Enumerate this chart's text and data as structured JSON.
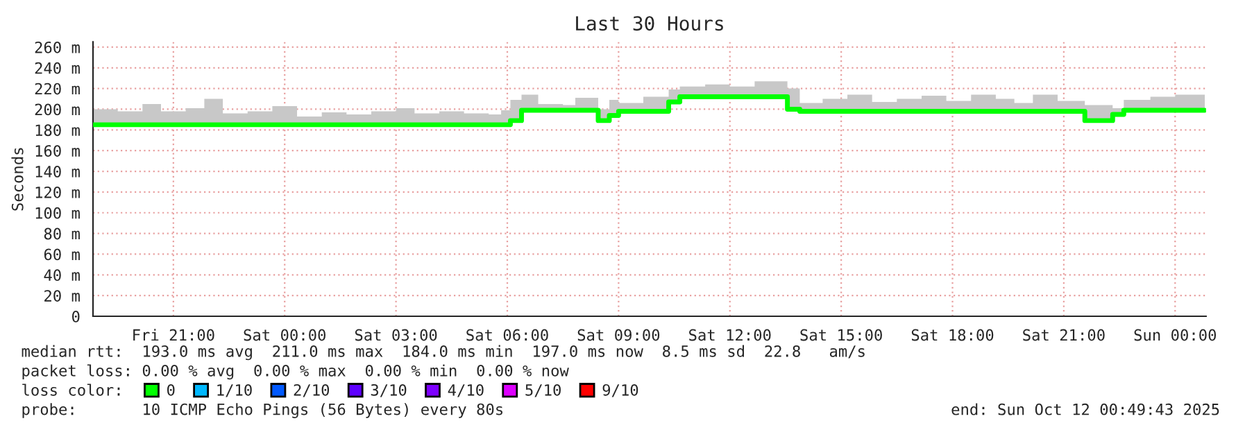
{
  "chart_data": {
    "type": "step",
    "title": "Last 30 Hours",
    "ylabel": "Seconds",
    "legend_title": "loss color:",
    "legend": "bottom left",
    "xlim": [
      "2025-10-10T18:50",
      "2025-10-12T00:50"
    ],
    "xticks": [
      {
        "value": "2025-10-10T21:00",
        "label": "Fri 21:00"
      },
      {
        "value": "2025-10-11T00:00",
        "label": "Sat 00:00"
      },
      {
        "value": "2025-10-11T03:00",
        "label": "Sat 03:00"
      },
      {
        "value": "2025-10-11T06:00",
        "label": "Sat 06:00"
      },
      {
        "value": "2025-10-11T09:00",
        "label": "Sat 09:00"
      },
      {
        "value": "2025-10-11T12:00",
        "label": "Sat 12:00"
      },
      {
        "value": "2025-10-11T15:00",
        "label": "Sat 15:00"
      },
      {
        "value": "2025-10-11T18:00",
        "label": "Sat 18:00"
      },
      {
        "value": "2025-10-11T21:00",
        "label": "Sat 21:00"
      },
      {
        "value": "2025-10-12T00:00",
        "label": "Sun 00:00"
      }
    ],
    "ylim": [
      0,
      265
    ],
    "yticks": [
      0,
      {
        "value": 20,
        "label": "20 m"
      },
      {
        "value": 40,
        "label": "40 m"
      },
      {
        "value": 60,
        "label": "60 m"
      },
      {
        "value": 80,
        "label": "80 m"
      },
      {
        "value": 100,
        "label": "100 m"
      },
      {
        "value": 120,
        "label": "120 m"
      },
      {
        "value": 140,
        "label": "140 m"
      },
      {
        "value": 160,
        "label": "160 m"
      },
      {
        "value": 180,
        "label": "180 m"
      },
      {
        "value": 200,
        "label": "200 m"
      },
      {
        "value": 220,
        "label": "220 m"
      },
      {
        "value": 240,
        "label": "240 m"
      },
      {
        "value": 260,
        "label": "260 m"
      }
    ],
    "grid": true,
    "series": [
      {
        "name": "0",
        "color": "#00ff00",
        "x": [
          "2025-10-10T18:50",
          "2025-10-10T19:30",
          "2025-10-10T20:10",
          "2025-10-10T20:40",
          "2025-10-10T21:20",
          "2025-10-10T21:50",
          "2025-10-10T22:20",
          "2025-10-10T23:00",
          "2025-10-10T23:40",
          "2025-10-11T00:20",
          "2025-10-11T01:00",
          "2025-10-11T01:40",
          "2025-10-11T02:20",
          "2025-10-11T03:00",
          "2025-10-11T03:30",
          "2025-10-11T04:10",
          "2025-10-11T04:50",
          "2025-10-11T05:30",
          "2025-10-11T05:50",
          "2025-10-11T06:05",
          "2025-10-11T06:23",
          "2025-10-11T06:50",
          "2025-10-11T07:30",
          "2025-10-11T07:50",
          "2025-10-11T08:27",
          "2025-10-11T08:45",
          "2025-10-11T09:00",
          "2025-10-11T09:40",
          "2025-10-11T10:21",
          "2025-10-11T10:39",
          "2025-10-11T11:20",
          "2025-10-11T12:00",
          "2025-10-11T12:40",
          "2025-10-11T13:33",
          "2025-10-11T13:53",
          "2025-10-11T14:30",
          "2025-10-11T15:10",
          "2025-10-11T15:50",
          "2025-10-11T16:30",
          "2025-10-11T17:10",
          "2025-10-11T17:50",
          "2025-10-11T18:30",
          "2025-10-11T19:10",
          "2025-10-11T19:40",
          "2025-10-11T20:10",
          "2025-10-11T20:50",
          "2025-10-11T21:34",
          "2025-10-11T22:19",
          "2025-10-11T22:37",
          "2025-10-11T23:20",
          "2025-10-12T00:00",
          "2025-10-12T00:48"
        ],
        "values": [
          185,
          185,
          185,
          185,
          185,
          185,
          185,
          185,
          185,
          185,
          185,
          185,
          185,
          185,
          185,
          185,
          185,
          185,
          185,
          189,
          199,
          199,
          199,
          199,
          189,
          194,
          198,
          198,
          207,
          212,
          212,
          212,
          212,
          200,
          198,
          198,
          198,
          198,
          198,
          198,
          198,
          198,
          198,
          198,
          198,
          198,
          189,
          195,
          199,
          199,
          199,
          199
        ],
        "lower": [
          183,
          183,
          183,
          183,
          183,
          183,
          183,
          183,
          183,
          183,
          183,
          183,
          183,
          183,
          183,
          183,
          183,
          183,
          183,
          187,
          197,
          197,
          197,
          197,
          187,
          192,
          196,
          196,
          205,
          210,
          210,
          210,
          210,
          198,
          196,
          196,
          196,
          196,
          196,
          196,
          196,
          196,
          196,
          196,
          196,
          196,
          187,
          193,
          197,
          197,
          197,
          197
        ],
        "upper": [
          200,
          198,
          205,
          198,
          201,
          210,
          196,
          198,
          203,
          193,
          197,
          195,
          198,
          201,
          196,
          198,
          196,
          195,
          199,
          209,
          214,
          205,
          204,
          211,
          200,
          209,
          206,
          212,
          219,
          222,
          224,
          222,
          227,
          220,
          206,
          210,
          214,
          207,
          210,
          213,
          208,
          214,
          210,
          206,
          214,
          208,
          204,
          201,
          209,
          212,
          214,
          211
        ]
      },
      {
        "name": "1/10",
        "color": "#00b8ff"
      },
      {
        "name": "2/10",
        "color": "#0059ff"
      },
      {
        "name": "3/10",
        "color": "#5e00ff"
      },
      {
        "name": "4/10",
        "color": "#7e00ff"
      },
      {
        "name": "5/10",
        "color": "#dd00ff"
      },
      {
        "name": "9/10",
        "color": "#ff0000"
      }
    ],
    "annotations": [
      "median rtt:  193.0 ms avg  211.0 ms max  184.0 ms min  197.0 ms now  8.5 ms sd  22.8   am/s",
      "packet loss: 0.00 % avg  0.00 % max  0.00 % min  0.00 % now",
      "probe:       10 ICMP Echo Pings (56 Bytes) every 80s",
      "end: Sun Oct 12 00:49:43 2025"
    ]
  }
}
